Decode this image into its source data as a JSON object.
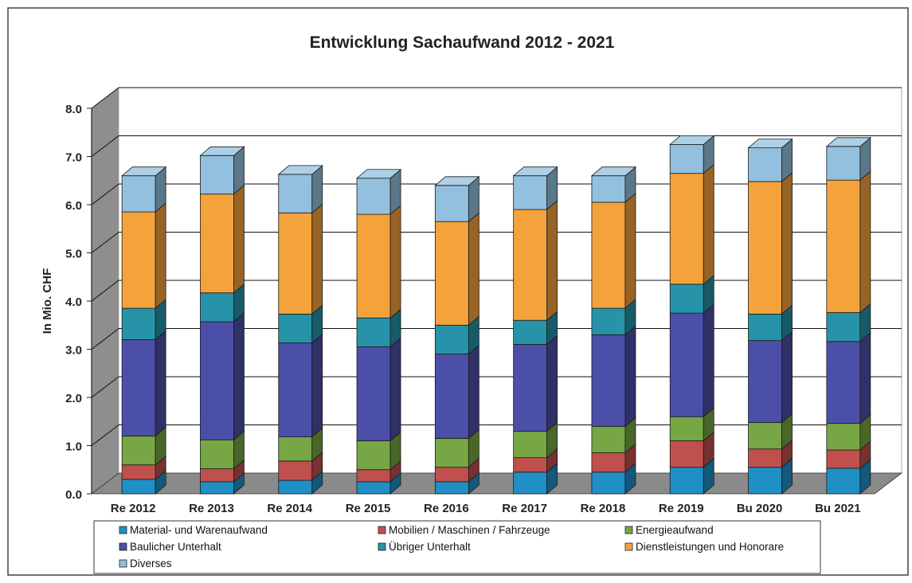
{
  "chart_data": {
    "type": "bar",
    "stacked": true,
    "three_d": true,
    "title": "Entwicklung Sachaufwand 2012 - 2021",
    "xlabel": "",
    "ylabel": "In Mio. CHF",
    "ylim": [
      0,
      8
    ],
    "yticks": [
      "0.0",
      "1.0",
      "2.0",
      "3.0",
      "4.0",
      "5.0",
      "6.0",
      "7.0",
      "8.0"
    ],
    "grid": true,
    "legend_position": "bottom",
    "categories": [
      "Re 2012",
      "Re 2013",
      "Re 2014",
      "Re 2015",
      "Re 2016",
      "Re 2017",
      "Re 2018",
      "Re 2019",
      "Bu 2020",
      "Bu 2021"
    ],
    "series": [
      {
        "name": "Material- und Warenaufwand",
        "color": "#1f8fc6",
        "values": [
          0.3,
          0.25,
          0.28,
          0.25,
          0.25,
          0.45,
          0.45,
          0.55,
          0.55,
          0.53
        ]
      },
      {
        "name": "Mobilien / Maschinen / Fahrzeuge",
        "color": "#c0504d",
        "values": [
          0.3,
          0.27,
          0.4,
          0.25,
          0.3,
          0.3,
          0.4,
          0.55,
          0.38,
          0.38
        ]
      },
      {
        "name": "Energieaufwand",
        "color": "#77a644",
        "values": [
          0.6,
          0.6,
          0.5,
          0.6,
          0.6,
          0.55,
          0.55,
          0.5,
          0.55,
          0.55
        ]
      },
      {
        "name": "Baulicher Unterhalt",
        "color": "#4b4fa8",
        "values": [
          2.0,
          2.45,
          1.95,
          1.95,
          1.75,
          1.8,
          1.9,
          2.15,
          1.7,
          1.7
        ]
      },
      {
        "name": "Übriger Unterhalt",
        "color": "#2693a8",
        "values": [
          0.65,
          0.6,
          0.6,
          0.6,
          0.6,
          0.5,
          0.55,
          0.6,
          0.55,
          0.6
        ]
      },
      {
        "name": "Dienstleistungen und Honorare",
        "color": "#f4a23c",
        "values": [
          2.0,
          2.05,
          2.1,
          2.15,
          2.15,
          2.3,
          2.2,
          2.3,
          2.75,
          2.75
        ]
      },
      {
        "name": "Diverses",
        "color": "#93c0df",
        "values": [
          0.75,
          0.8,
          0.8,
          0.75,
          0.75,
          0.7,
          0.55,
          0.6,
          0.7,
          0.7
        ]
      }
    ],
    "legend_order": [
      "Material- und Warenaufwand",
      "Mobilien / Maschinen / Fahrzeuge",
      "Energieaufwand",
      "Baulicher Unterhalt",
      "Übriger Unterhalt",
      "Dienstleistungen und Honorare",
      "Diverses"
    ]
  }
}
